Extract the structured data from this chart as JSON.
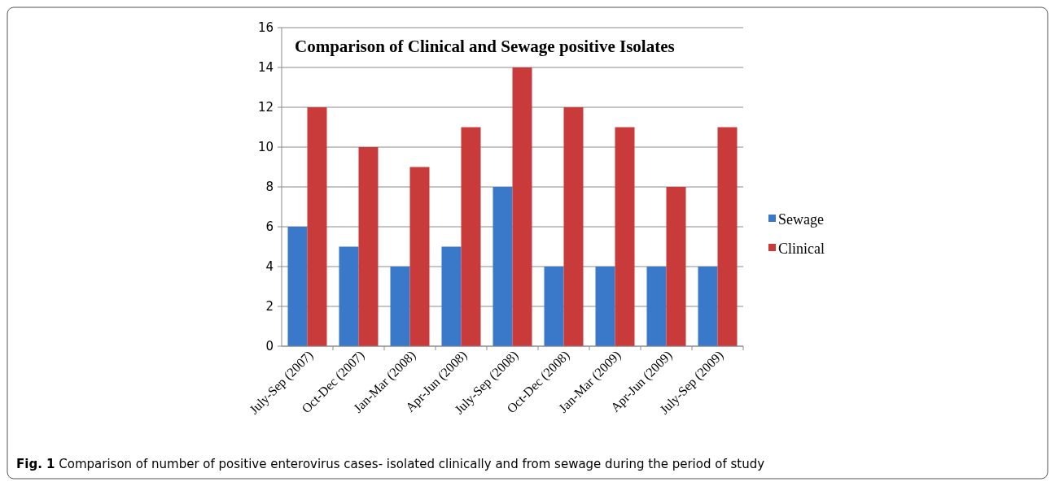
{
  "chart_data": {
    "type": "bar",
    "title": "Comparison of Clinical and Sewage positive Isolates",
    "categories": [
      "July-Sep (2007)",
      "Oct-Dec (2007)",
      "Jan-Mar (2008)",
      "Apr-Jun (2008)",
      "July-Sep (2008)",
      "Oct-Dec (2008)",
      "Jan-Mar (2009)",
      "Apr-Jun (2009)",
      "July-Sep (2009)"
    ],
    "series": [
      {
        "name": "Sewage",
        "color": "#3a78c9",
        "values": [
          6,
          5,
          4,
          5,
          8,
          4,
          4,
          4,
          4
        ]
      },
      {
        "name": "Clinical",
        "color": "#c93a3a",
        "values": [
          12,
          10,
          9,
          11,
          14,
          12,
          11,
          8,
          11
        ]
      }
    ],
    "ylim": [
      0,
      16
    ],
    "yticks": [
      0,
      2,
      4,
      6,
      8,
      10,
      12,
      14,
      16
    ],
    "grid": "y",
    "legend": "right",
    "annotations": [
      "Fig. 1 Comparison of number of positive enterovirus cases- isolated clinically and from sewage during the period of study"
    ]
  }
}
